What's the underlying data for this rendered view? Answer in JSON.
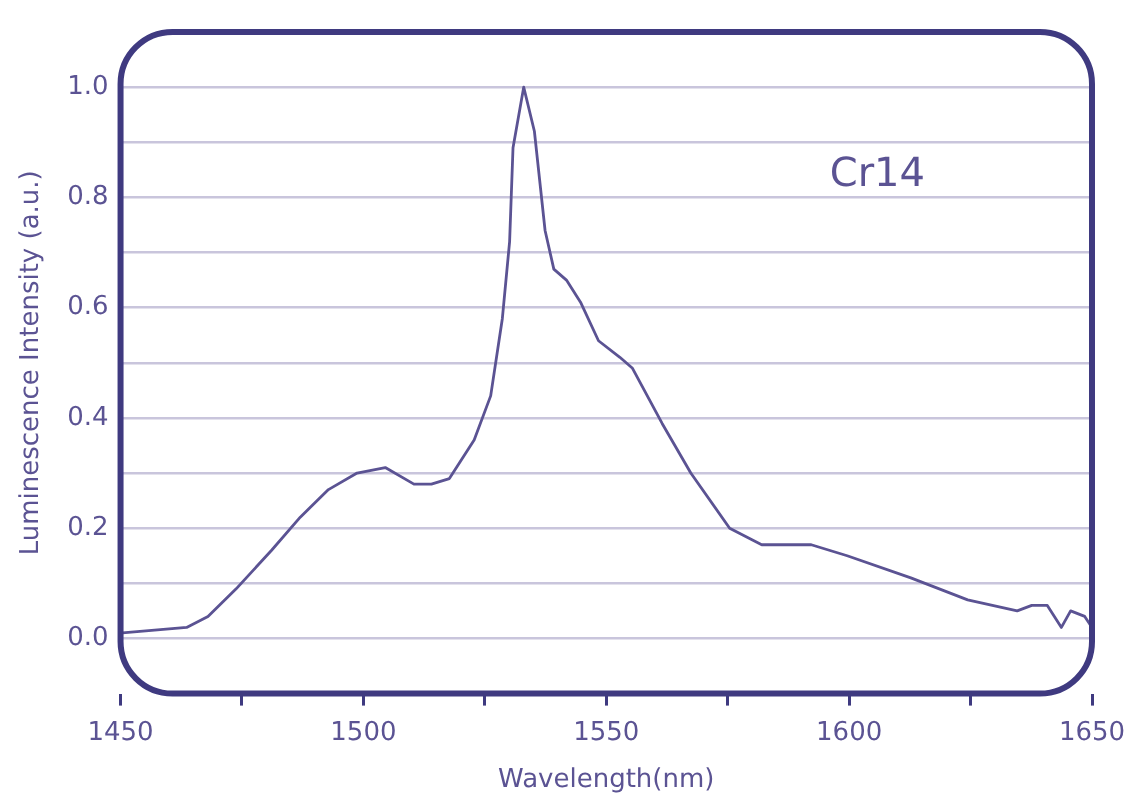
{
  "chart_data": {
    "type": "line",
    "xlabel": "Wavelength(nm)",
    "ylabel": "Luminescence Intensity (a.u.)",
    "annotations": [
      "Cr14"
    ],
    "xlim": [
      1450,
      1650
    ],
    "xticks": [
      1450,
      {
        "value": 1475,
        "label": null
      },
      1500,
      {
        "value": 1525,
        "label": null
      },
      1550,
      {
        "value": 1575,
        "label": null
      },
      1600,
      {
        "value": 1625,
        "label": null
      },
      1650
    ],
    "ylim": [
      -0.1,
      1.1
    ],
    "yticks": [
      {
        "value": 0,
        "label": "0.0"
      },
      {
        "value": 0.1,
        "label": null
      },
      {
        "value": 0.2,
        "label": "0.2"
      },
      {
        "value": 0.3,
        "label": null
      },
      {
        "value": 0.4,
        "label": "0.4"
      },
      {
        "value": 0.5,
        "label": null
      },
      {
        "value": 0.6,
        "label": "0.6"
      },
      {
        "value": 0.7,
        "label": null
      },
      {
        "value": 0.8,
        "label": "0.8"
      },
      {
        "value": 0.9,
        "label": null
      },
      {
        "value": 1.0,
        "label": "1.0"
      }
    ],
    "grid": "y",
    "legend": false,
    "marker": "none",
    "line_style": "solid",
    "series": [
      {
        "color": "#5b5393",
        "x": [
          1450.4,
          1463.6,
          1468,
          1473.8,
          1481.1,
          1487,
          1492.8,
          1498.7,
          1504.5,
          1510.4,
          1514,
          1517.7,
          1522.8,
          1526.2,
          1528.6,
          1530.1,
          1530.8,
          1533,
          1535.2,
          1537.4,
          1539.2,
          1541.8,
          1544.7,
          1548.4,
          1552.8,
          1555.4,
          1561.5,
          1567.4,
          1575.4,
          1582,
          1592.2,
          1599.6,
          1612.7,
          1624.4,
          1634.6,
          1637.6,
          1640.8,
          1643.7,
          1645.6,
          1648.5,
          1650
        ],
        "values": [
          0.01,
          0.02,
          0.04,
          0.09,
          0.16,
          0.22,
          0.27,
          0.3,
          0.31,
          0.28,
          0.28,
          0.29,
          0.36,
          0.44,
          0.58,
          0.72,
          0.89,
          1.0,
          0.92,
          0.74,
          0.67,
          0.65,
          0.61,
          0.54,
          0.51,
          0.49,
          0.39,
          0.3,
          0.2,
          0.17,
          0.17,
          0.15,
          0.11,
          0.07,
          0.05,
          0.06,
          0.06,
          0.02,
          0.05,
          0.04,
          0.02
        ]
      }
    ]
  }
}
